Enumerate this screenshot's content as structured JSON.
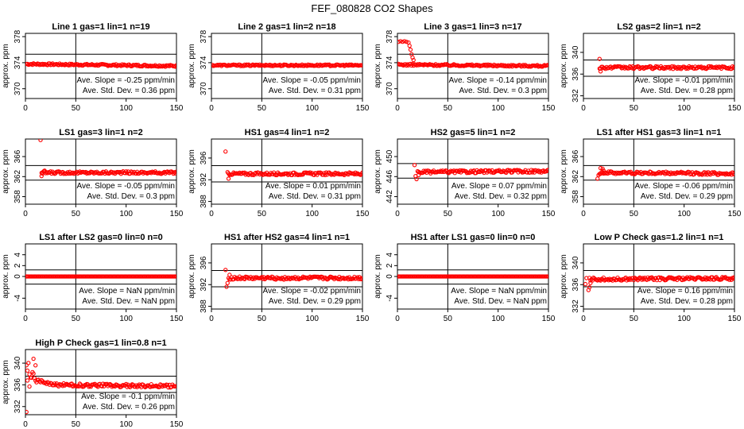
{
  "figure_title": "FEF_080828  CO2 Shapes",
  "colors": {
    "points": "#ff0000",
    "axes": "#000000",
    "background": "#ffffff"
  },
  "chart_data": [
    {
      "type": "scatter",
      "title": "Line 1 gas=1 lin=1 n=19",
      "ylabel": "approx. ppm",
      "xlim": [
        0,
        150
      ],
      "ylim": [
        368.5,
        378.5
      ],
      "xticks": [
        0,
        50,
        100,
        150
      ],
      "yticks": [
        370,
        374,
        378
      ],
      "hlines": [
        372.4,
        375.3
      ],
      "vline": 50,
      "slope": "Ave. Slope =  -0.25  ppm/min",
      "stddev": "Ave. Std. Dev. =  0.36  ppm",
      "series": {
        "start": 1,
        "end": 150,
        "base": 373.8,
        "noise": 0.14,
        "trend": -0.3,
        "spikes": []
      }
    },
    {
      "type": "scatter",
      "title": "Line 2 gas=1 lin=2 n=18",
      "ylabel": "approx. ppm",
      "xlim": [
        0,
        150
      ],
      "ylim": [
        368.5,
        378.5
      ],
      "xticks": [
        0,
        50,
        100,
        150
      ],
      "yticks": [
        370,
        374,
        378
      ],
      "hlines": [
        372.4,
        375.3
      ],
      "vline": 50,
      "slope": "Ave. Slope =  -0.05  ppm/min",
      "stddev": "Ave. Std. Dev. =  0.31  ppm",
      "series": {
        "start": 1,
        "end": 150,
        "base": 373.6,
        "noise": 0.12,
        "trend": 0,
        "spikes": []
      }
    },
    {
      "type": "scatter",
      "title": "Line 3 gas=1 lin=3 n=17",
      "ylabel": "approx. ppm",
      "xlim": [
        0,
        150
      ],
      "ylim": [
        368.5,
        378.5
      ],
      "xticks": [
        0,
        50,
        100,
        150
      ],
      "yticks": [
        370,
        374,
        378
      ],
      "hlines": [
        372.4,
        375.3
      ],
      "vline": 50,
      "slope": "Ave. Slope =  -0.14  ppm/min",
      "stddev": "Ave. Std. Dev. =  0.3  ppm",
      "series": {
        "start": 1,
        "end": 150,
        "base": 373.7,
        "noise": 0.14,
        "trend": -0.2,
        "spikes": [
          [
            1,
            377.2
          ],
          [
            3,
            377.3
          ],
          [
            5,
            377.2
          ],
          [
            7,
            377.3
          ],
          [
            9,
            377.2
          ],
          [
            11,
            377.1
          ],
          [
            12,
            376.6
          ],
          [
            13,
            376.0
          ],
          [
            14,
            375.3
          ],
          [
            15,
            374.8
          ],
          [
            16,
            374.4
          ]
        ]
      }
    },
    {
      "type": "scatter",
      "title": "LS2 gas=2 lin=1 n=2",
      "ylabel": "approx. ppm",
      "xlim": [
        0,
        150
      ],
      "ylim": [
        331.5,
        343.5
      ],
      "xticks": [
        0,
        50,
        100,
        150
      ],
      "yticks": [
        332,
        336,
        340
      ],
      "hlines": [
        335.6,
        338.6
      ],
      "vline": 50,
      "slope": "Ave. Slope =  -0.01  ppm/min",
      "stddev": "Ave. Std. Dev. =  0.28  ppm",
      "series": {
        "start": 16,
        "end": 150,
        "base": 337.2,
        "noise": 0.25,
        "trend": 0,
        "spikes": [
          [
            16,
            338.8
          ],
          [
            17,
            336.5
          ]
        ]
      }
    },
    {
      "type": "scatter",
      "title": "LS1 gas=3 lin=1 n=2",
      "ylabel": "approx. ppm",
      "xlim": [
        0,
        150
      ],
      "ylim": [
        356.5,
        369.5
      ],
      "xticks": [
        0,
        50,
        100,
        150
      ],
      "yticks": [
        358,
        362,
        366
      ],
      "hlines": [
        361.3,
        364.2
      ],
      "vline": 50,
      "slope": "Ave. Slope =  -0.05  ppm/min",
      "stddev": "Ave. Std. Dev. =  0.3  ppm",
      "series": {
        "start": 16,
        "end": 150,
        "base": 362.8,
        "noise": 0.25,
        "trend": 0,
        "spikes": [
          [
            15,
            369.3
          ],
          [
            16,
            362.1
          ],
          [
            17,
            362.6
          ],
          [
            19,
            363.2
          ]
        ]
      }
    },
    {
      "type": "scatter",
      "title": "HS1 gas=4 lin=1 n=2",
      "ylabel": "approx. ppm",
      "xlim": [
        0,
        150
      ],
      "ylim": [
        387.5,
        399.5
      ],
      "xticks": [
        0,
        50,
        100,
        150
      ],
      "yticks": [
        388,
        392,
        396
      ],
      "hlines": [
        391.6,
        394.6
      ],
      "vline": 50,
      "slope": "Ave. Slope =  0.01  ppm/min",
      "stddev": "Ave. Std. Dev. =  0.31  ppm",
      "series": {
        "start": 17,
        "end": 150,
        "base": 393.1,
        "noise": 0.25,
        "trend": 0,
        "spikes": [
          [
            14,
            397.2
          ],
          [
            16,
            393.4
          ],
          [
            17,
            392.2
          ]
        ]
      }
    },
    {
      "type": "scatter",
      "title": "HS2 gas=5 lin=1 n=2",
      "ylabel": "approx. ppm",
      "xlim": [
        0,
        150
      ],
      "ylim": [
        440.5,
        453.5
      ],
      "xticks": [
        0,
        50,
        100,
        150
      ],
      "yticks": [
        442,
        446,
        450
      ],
      "hlines": [
        445.7,
        448.6
      ],
      "vline": 50,
      "slope": "Ave. Slope =  0.07  ppm/min",
      "stddev": "Ave. Std. Dev. =  0.32  ppm",
      "series": {
        "start": 20,
        "end": 150,
        "base": 446.9,
        "noise": 0.28,
        "trend": 0.2,
        "spikes": [
          [
            17,
            448.3
          ],
          [
            18,
            446.1
          ],
          [
            19,
            445.5
          ],
          [
            21,
            446.3
          ]
        ]
      }
    },
    {
      "type": "scatter",
      "title": "LS1 after HS1 gas=3 lin=1 n=1",
      "ylabel": "approx. ppm",
      "xlim": [
        0,
        150
      ],
      "ylim": [
        356.5,
        369.5
      ],
      "xticks": [
        0,
        50,
        100,
        150
      ],
      "yticks": [
        358,
        362,
        366
      ],
      "hlines": [
        361.3,
        364.2
      ],
      "vline": 50,
      "slope": "Ave. Slope =  -0.06  ppm/min",
      "stddev": "Ave. Std. Dev. =  0.29  ppm",
      "series": {
        "start": 16,
        "end": 150,
        "base": 362.8,
        "noise": 0.28,
        "trend": -0.2,
        "spikes": [
          [
            14,
            361.6
          ],
          [
            15,
            362.3
          ],
          [
            17,
            363.7
          ],
          [
            19,
            363.6
          ],
          [
            20,
            363.2
          ]
        ]
      }
    },
    {
      "type": "scatter",
      "title": "LS1 after LS2 gas=0 lin=0 n=0",
      "ylabel": "approx. ppm",
      "xlim": [
        0,
        150
      ],
      "ylim": [
        -6,
        6
      ],
      "xticks": [
        0,
        50,
        100,
        150
      ],
      "yticks": [
        -4,
        0,
        2,
        4
      ],
      "hlines": [
        -1.4,
        1.2
      ],
      "vline": 50,
      "slope": "Ave. Slope =  NaN  ppm/min",
      "stddev": "Ave. Std. Dev. =  NaN  ppm",
      "series": {
        "start": 1,
        "end": 150,
        "base": 0,
        "noise": 0,
        "trend": 0,
        "spikes": []
      }
    },
    {
      "type": "scatter",
      "title": "HS1 after HS2 gas=4 lin=1 n=1",
      "ylabel": "approx. ppm",
      "xlim": [
        0,
        150
      ],
      "ylim": [
        387.5,
        399.5
      ],
      "xticks": [
        0,
        50,
        100,
        150
      ],
      "yticks": [
        388,
        392,
        396
      ],
      "hlines": [
        391.6,
        394.6
      ],
      "vline": 50,
      "slope": "Ave. Slope =  -0.02  ppm/min",
      "stddev": "Ave. Std. Dev. =  0.29  ppm",
      "series": {
        "start": 17,
        "end": 150,
        "base": 393.2,
        "noise": 0.28,
        "trend": 0,
        "spikes": [
          [
            14,
            394.7
          ],
          [
            15,
            391.6
          ],
          [
            16,
            392.3
          ],
          [
            18,
            393.8
          ]
        ]
      }
    },
    {
      "type": "scatter",
      "title": "HS1 after LS1 gas=0 lin=0 n=0",
      "ylabel": "approx. ppm",
      "xlim": [
        0,
        150
      ],
      "ylim": [
        -6,
        6
      ],
      "xticks": [
        0,
        50,
        100,
        150
      ],
      "yticks": [
        -4,
        0,
        2,
        4
      ],
      "hlines": [
        -1.4,
        1.2
      ],
      "vline": 50,
      "slope": "Ave. Slope =  NaN  ppm/min",
      "stddev": "Ave. Std. Dev. =  NaN  ppm",
      "series": {
        "start": 1,
        "end": 150,
        "base": 0,
        "noise": 0,
        "trend": 0,
        "spikes": []
      }
    },
    {
      "type": "scatter",
      "title": "Low P Check gas=1.2 lin=1 n=1",
      "ylabel": "approx. ppm",
      "xlim": [
        0,
        150
      ],
      "ylim": [
        331.5,
        343.5
      ],
      "xticks": [
        0,
        50,
        100,
        150
      ],
      "yticks": [
        332,
        336,
        340
      ],
      "hlines": [
        335.6,
        338.6
      ],
      "vline": 50,
      "slope": "Ave. Slope =  0.16  ppm/min",
      "stddev": "Ave. Std. Dev. =  0.28  ppm",
      "series": {
        "start": 6,
        "end": 150,
        "base": 337.0,
        "noise": 0.28,
        "trend": 0.15,
        "spikes": [
          [
            2,
            336.1
          ],
          [
            3,
            337.2
          ],
          [
            5,
            335.0
          ],
          [
            6,
            335.5
          ],
          [
            7,
            336.3
          ]
        ]
      }
    },
    {
      "type": "scatter",
      "title": "High P Check gas=1 lin=0.8 n=1",
      "ylabel": "approx. ppm",
      "xlim": [
        0,
        150
      ],
      "ylim": [
        330.5,
        342.5
      ],
      "xticks": [
        0,
        50,
        100,
        150
      ],
      "yticks": [
        332,
        336,
        340
      ],
      "hlines": [
        334.6,
        337.6
      ],
      "vline": 50,
      "slope": "Ave. Slope =  -0.1  ppm/min",
      "stddev": "Ave. Std. Dev. =  0.26  ppm",
      "series": {
        "start": 1,
        "end": 150,
        "base": 336.0,
        "noise": 0.3,
        "trend": -0.2,
        "decay": {
          "amp": 3.5,
          "tau": 8
        },
        "spikes": [
          [
            1,
            331.0
          ],
          [
            2,
            336.8
          ],
          [
            4,
            335.7
          ],
          [
            8,
            340.8
          ],
          [
            10,
            339.6
          ]
        ]
      }
    }
  ]
}
